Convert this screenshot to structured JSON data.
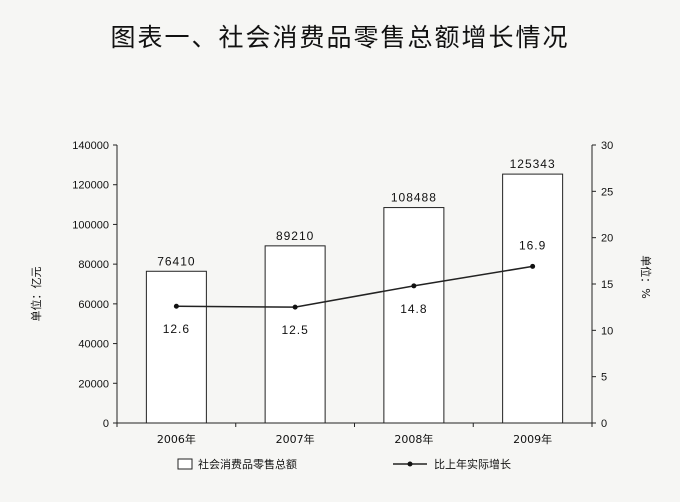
{
  "chart_data": {
    "type": "bar+line",
    "title": "图表一、社会消费品零售总额增长情况",
    "categories": [
      "2006年",
      "2007年",
      "2008年",
      "2009年"
    ],
    "series": [
      {
        "name": "社会消费品零售总额",
        "type": "bar",
        "axis": "left",
        "values": [
          76410,
          89210,
          108488,
          125343
        ],
        "labels": [
          "76410",
          "89210",
          "108488",
          "125343"
        ]
      },
      {
        "name": "比上年实际增长",
        "type": "line",
        "axis": "right",
        "values": [
          12.6,
          12.5,
          14.8,
          16.9
        ],
        "labels": [
          "12.6",
          "12.5",
          "14.8",
          "16.9"
        ]
      }
    ],
    "y_left": {
      "label": "单位：亿元",
      "ylim": [
        0,
        140000
      ],
      "ticks": [
        0,
        20000,
        40000,
        60000,
        80000,
        100000,
        120000,
        140000
      ]
    },
    "y_right": {
      "label": "单位：%",
      "ylim": [
        0,
        30
      ],
      "ticks": [
        0,
        5,
        10,
        15,
        20,
        25,
        30
      ]
    },
    "grid": false,
    "legend": "bottom"
  }
}
